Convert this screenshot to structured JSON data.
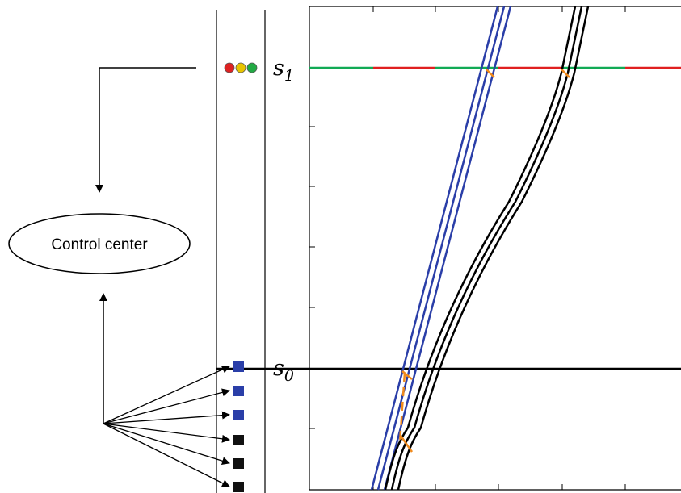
{
  "control_center": {
    "label": "Control center"
  },
  "stations": {
    "upper": {
      "symbol": "s",
      "subscript": "1"
    },
    "lower": {
      "symbol": "s",
      "subscript": "0"
    }
  },
  "signal_lights": [
    "#dd2222",
    "#e8c400",
    "#22aa44"
  ],
  "signal_phase_colors": [
    "#11aa55",
    "#e02020",
    "#11aa55",
    "#e02020",
    "#11aa55",
    "#e02020"
  ],
  "detectors": [
    "#2a3ea8",
    "#2a3ea8",
    "#2a3ea8",
    "#111111",
    "#111111",
    "#111111"
  ],
  "trajectory_groups": [
    {
      "name": "blue",
      "color": "#2a3ea8"
    },
    {
      "name": "black",
      "color": "#000000"
    }
  ],
  "marker_color": "#f08a1c"
}
